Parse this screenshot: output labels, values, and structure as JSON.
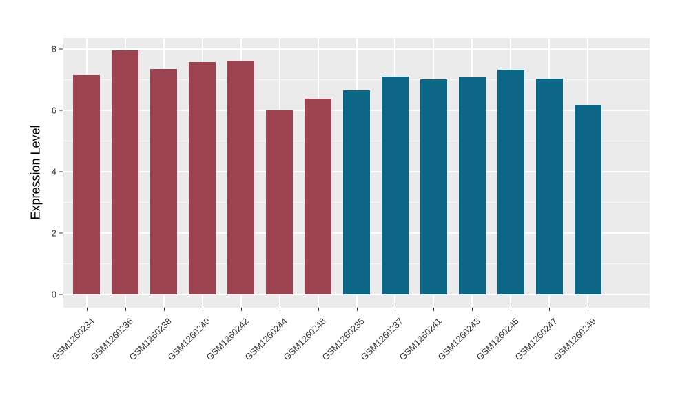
{
  "chart_data": {
    "type": "bar",
    "title": "",
    "xlabel": "",
    "ylabel": "Expression Level",
    "categories": [
      "GSM1260234",
      "GSM1260236",
      "GSM1260238",
      "GSM1260240",
      "GSM1260242",
      "GSM1260244",
      "GSM1260248",
      "GSM1260235",
      "GSM1260237",
      "GSM1260241",
      "GSM1260243",
      "GSM1260245",
      "GSM1260247",
      "GSM1260249"
    ],
    "values": [
      7.15,
      7.95,
      7.35,
      7.58,
      7.62,
      6.0,
      6.38,
      6.65,
      7.1,
      7.02,
      7.08,
      7.33,
      7.04,
      6.18
    ],
    "groups": [
      "maroon",
      "maroon",
      "maroon",
      "maroon",
      "maroon",
      "maroon",
      "maroon",
      "teal",
      "teal",
      "teal",
      "teal",
      "teal",
      "teal",
      "teal"
    ],
    "group_colors": {
      "maroon": "#9B4351",
      "teal": "#0C6787"
    },
    "ylim": [
      -0.42,
      8.36
    ],
    "yticks": [
      0,
      2,
      4,
      6,
      8
    ],
    "ytick_labels": [
      "0",
      "2",
      "4",
      "6",
      "8"
    ],
    "minor_yticks": [
      1,
      3,
      5,
      7
    ],
    "x_expand": 0.6,
    "bar_width": 0.7,
    "panel_bg": "#EBEBEB",
    "grid_color": "#FFFFFF",
    "legend_position": "none",
    "grid": "on"
  }
}
